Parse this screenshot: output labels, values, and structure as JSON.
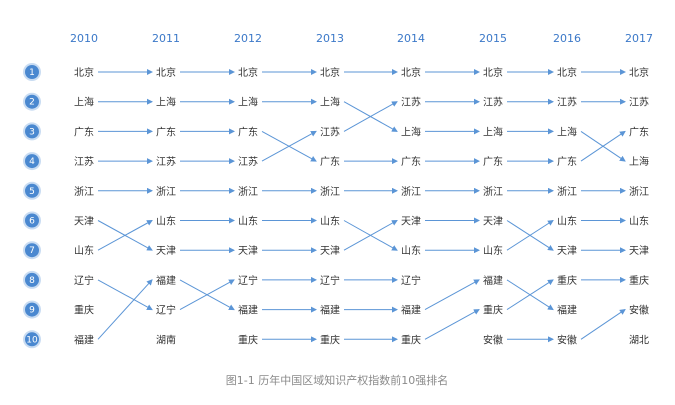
{
  "years": [
    "2010",
    "2011",
    "2012",
    "2013",
    "2014",
    "2015",
    "2016",
    "2017"
  ],
  "ranks": [
    "1",
    "2",
    "3",
    "4",
    "5",
    "6",
    "7",
    "8",
    "9",
    "10"
  ],
  "rankings": [
    [
      "北京",
      "上海",
      "广东",
      "江苏",
      "浙江",
      "天津",
      "山东",
      "辽宁",
      "重庆",
      "福建"
    ],
    [
      "北京",
      "上海",
      "广东",
      "江苏",
      "浙江",
      "山东",
      "天津",
      "福建",
      "辽宁",
      "湖南"
    ],
    [
      "北京",
      "上海",
      "广东",
      "江苏",
      "浙江",
      "山东",
      "天津",
      "辽宁",
      "福建",
      "重庆"
    ],
    [
      "北京",
      "上海",
      "江苏",
      "广东",
      "浙江",
      "山东",
      "天津",
      "辽宁",
      "福建",
      "重庆"
    ],
    [
      "北京",
      "江苏",
      "上海",
      "广东",
      "浙江",
      "天津",
      "山东",
      "辽宁",
      "福建",
      "重庆"
    ],
    [
      "北京",
      "江苏",
      "上海",
      "广东",
      "浙江",
      "天津",
      "山东",
      "福建",
      "重庆",
      "安徽"
    ],
    [
      "北京",
      "江苏",
      "上海",
      "广东",
      "浙江",
      "山东",
      "天津",
      "重庆",
      "福建",
      "安徽"
    ],
    [
      "北京",
      "江苏",
      "广东",
      "上海",
      "浙江",
      "山东",
      "天津",
      "重庆",
      "安徽",
      "湖北"
    ]
  ],
  "caption": "图1-1 历年中国区域知识产权指数前10强排名",
  "colors": {
    "year": "#3b78c8",
    "line": "#5b95d6",
    "badge": "#4a88d0",
    "badge_ring": "#c9dcf2",
    "text": "#333333",
    "caption": "#8a8a8a"
  }
}
